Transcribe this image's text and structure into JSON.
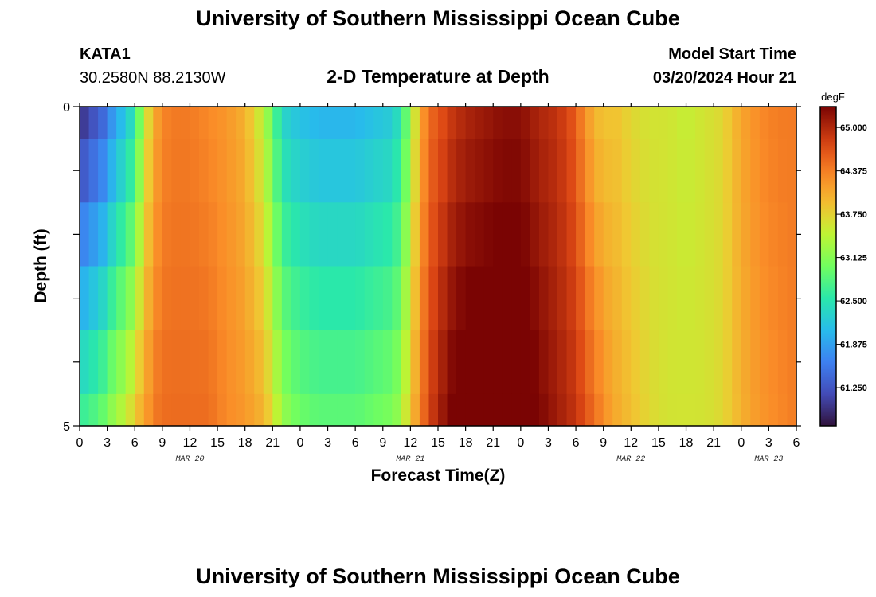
{
  "header": {
    "title": "University of Southern Mississippi Ocean Cube",
    "station_id": "KATA1",
    "station_coords": "30.2580N  88.2130W",
    "model_start_label": "Model Start Time",
    "model_start_value": "03/20/2024 Hour 21",
    "plot_title": "2-D Temperature at Depth"
  },
  "footer": {
    "title": "University of Southern Mississippi Ocean Cube"
  },
  "chart_data": {
    "type": "heatmap",
    "title": "2-D Temperature at Depth",
    "xlabel": "Forecast Time(Z)",
    "ylabel": "Depth (ft)",
    "ylim": [
      0,
      5
    ],
    "y_tick_labels": [
      "0",
      "5"
    ],
    "x_tick_labels": [
      "0",
      "3",
      "6",
      "9",
      "12",
      "15",
      "18",
      "21",
      "0",
      "3",
      "6",
      "9",
      "12",
      "15",
      "18",
      "21",
      "0",
      "3",
      "6",
      "9",
      "12",
      "15",
      "18",
      "21",
      "0",
      "3",
      "6"
    ],
    "x_hours": [
      0,
      3,
      6,
      9,
      12,
      15,
      18,
      21,
      24,
      27,
      30,
      33,
      36,
      39,
      42,
      45,
      48,
      51,
      54,
      57,
      60,
      63,
      66,
      69,
      72,
      75,
      78
    ],
    "date_labels": [
      {
        "label": "MAR 20",
        "hour": 12
      },
      {
        "label": "MAR 21",
        "hour": 36
      },
      {
        "label": "MAR 22",
        "hour": 60
      },
      {
        "label": "MAR 23",
        "hour": 75
      }
    ],
    "depth_bands_ft": [
      [
        0,
        0.5
      ],
      [
        0.5,
        1.5
      ],
      [
        1.5,
        2.5
      ],
      [
        2.5,
        3.5
      ],
      [
        3.5,
        4.5
      ],
      [
        4.5,
        5
      ]
    ],
    "colorbar": {
      "units": "degF",
      "tick_labels": [
        "65.000",
        "64.375",
        "63.750",
        "63.125",
        "62.500",
        "61.875",
        "61.250"
      ],
      "tick_values": [
        65.0,
        64.375,
        63.75,
        63.125,
        62.5,
        61.875,
        61.25
      ],
      "min": 60.7,
      "max": 65.3
    },
    "temperature_profile": {
      "hours": [
        0,
        1,
        2,
        3,
        4,
        5,
        6,
        7,
        8,
        9,
        10,
        12,
        14,
        16,
        18,
        20,
        21,
        22,
        23,
        24,
        26,
        28,
        30,
        32,
        34,
        35,
        36,
        37,
        38,
        39,
        40,
        42,
        44,
        46,
        48,
        50,
        52,
        54,
        55,
        56,
        57,
        58,
        60,
        62,
        64,
        66,
        68,
        70,
        72,
        74,
        76,
        78
      ],
      "surface": [
        60.8,
        61.1,
        61.2,
        61.5,
        61.9,
        62.1,
        62.5,
        63.4,
        64.0,
        64.3,
        64.4,
        64.4,
        64.3,
        64.2,
        64.0,
        63.4,
        62.9,
        62.3,
        62.2,
        62.1,
        62.0,
        62.0,
        62.0,
        62.1,
        62.2,
        62.5,
        63.2,
        64.0,
        64.5,
        64.6,
        64.8,
        65.0,
        65.1,
        65.2,
        65.2,
        65.0,
        64.9,
        64.6,
        64.2,
        64.0,
        63.8,
        63.9,
        63.7,
        63.6,
        63.6,
        63.5,
        63.6,
        63.7,
        64.1,
        64.3,
        64.4,
        64.4
      ],
      "bottom": [
        62.7,
        62.8,
        62.9,
        63.1,
        63.4,
        63.5,
        63.9,
        64.1,
        64.4,
        64.5,
        64.5,
        64.5,
        64.5,
        64.3,
        64.2,
        64.0,
        63.7,
        63.3,
        63.1,
        63.0,
        62.9,
        62.9,
        62.9,
        63.0,
        63.1,
        63.3,
        63.9,
        64.3,
        64.8,
        65.0,
        65.3,
        65.5,
        65.5,
        65.5,
        65.5,
        65.3,
        65.1,
        64.9,
        64.7,
        64.5,
        64.3,
        64.1,
        63.9,
        63.7,
        63.6,
        63.6,
        63.6,
        63.7,
        64.0,
        64.2,
        64.3,
        64.4
      ]
    }
  }
}
